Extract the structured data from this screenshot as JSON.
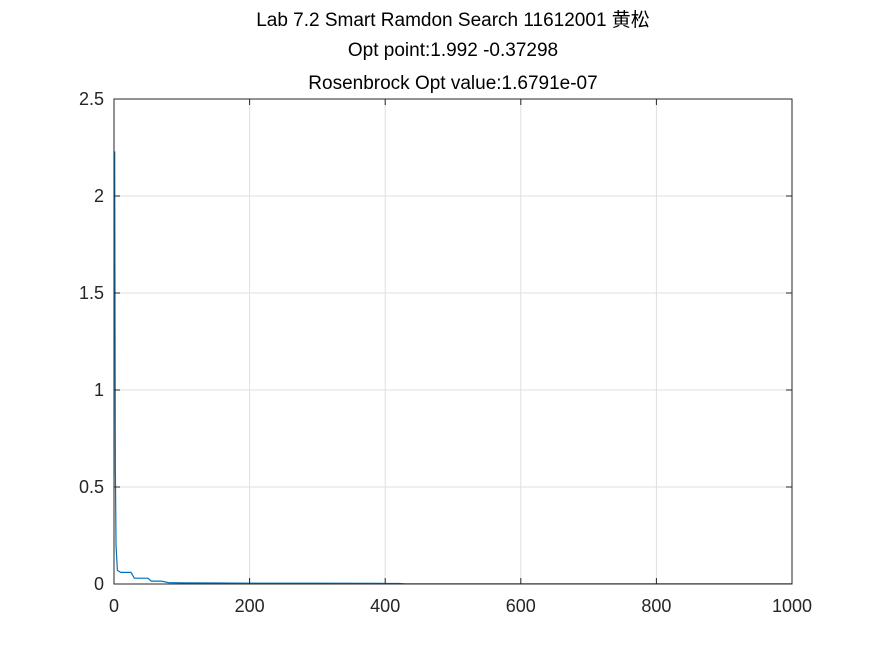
{
  "chart_data": {
    "type": "line",
    "title_lines": [
      "Lab 7.2 Smart Ramdon Search 11612001 黄松",
      "Opt point:1.992     -0.37298",
      "Rosenbrock Opt value:1.6791e-07"
    ],
    "xlabel": "",
    "ylabel": "",
    "xlim": [
      0,
      1000
    ],
    "ylim": [
      0,
      2.5
    ],
    "x_ticks": [
      "0",
      "200",
      "400",
      "600",
      "800",
      "1000"
    ],
    "y_ticks": [
      "0",
      "0.5",
      "1",
      "1.5",
      "2",
      "2.5"
    ],
    "grid": true,
    "series": [
      {
        "color": "#0072BD",
        "x": [
          1,
          2,
          3,
          5,
          10,
          15,
          18,
          20,
          25,
          30,
          35,
          40,
          45,
          50,
          55,
          60,
          70,
          80,
          100,
          150,
          200,
          300,
          400,
          420,
          430,
          500,
          600,
          700,
          800,
          900,
          1000
        ],
        "y": [
          2.23,
          0.6,
          0.2,
          0.07,
          0.06,
          0.06,
          0.06,
          0.06,
          0.06,
          0.03,
          0.03,
          0.03,
          0.03,
          0.03,
          0.015,
          0.015,
          0.015,
          0.007,
          0.006,
          0.005,
          0.004,
          0.004,
          0.003,
          0.003,
          0.001,
          0.0008,
          0.0007,
          0.0007,
          0.0006,
          0.0006,
          0.0006
        ]
      }
    ]
  }
}
